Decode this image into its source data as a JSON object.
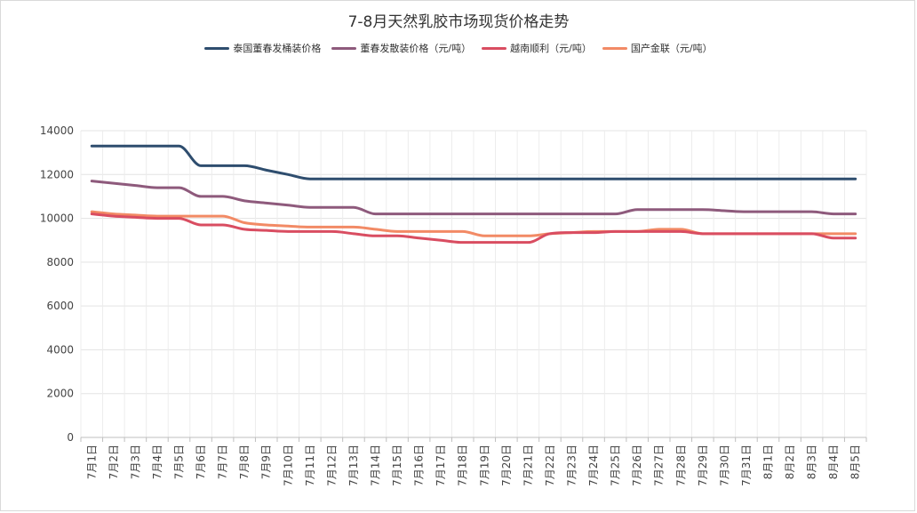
{
  "title": "7-8月天然乳胶市场现货价格走势",
  "chart_data": {
    "type": "line",
    "title": "7-8月天然乳胶市场现货价格走势",
    "xlabel": "",
    "ylabel": "",
    "ylim": [
      0,
      14000
    ],
    "yticks": [
      0,
      2000,
      4000,
      6000,
      8000,
      10000,
      12000,
      14000
    ],
    "grid": true,
    "legend_position": "top",
    "x": [
      "7月1日",
      "7月2日",
      "7月3日",
      "7月4日",
      "7月5日",
      "7月6日",
      "7月7日",
      "7月8日",
      "7月9日",
      "7月10日",
      "7月11日",
      "7月12日",
      "7月13日",
      "7月14日",
      "7月15日",
      "7月16日",
      "7月17日",
      "7月18日",
      "7月19日",
      "7月20日",
      "7月21日",
      "7月22日",
      "7月23日",
      "7月24日",
      "7月25日",
      "7月26日",
      "7月27日",
      "7月28日",
      "7月29日",
      "7月30日",
      "7月31日",
      "8月1日",
      "8月2日",
      "8月3日",
      "8月4日",
      "8月5日"
    ],
    "series": [
      {
        "name": "泰国董春发桶装价格",
        "color": "#2e4d6e",
        "values": [
          13300,
          13300,
          13300,
          13300,
          13300,
          12400,
          12400,
          12400,
          12200,
          12000,
          11800,
          11800,
          11800,
          11800,
          11800,
          11800,
          11800,
          11800,
          11800,
          11800,
          11800,
          11800,
          11800,
          11800,
          11800,
          11800,
          11800,
          11800,
          11800,
          11800,
          11800,
          11800,
          11800,
          11800,
          11800,
          11800
        ]
      },
      {
        "name": "董春发散装价格（元/吨）",
        "color": "#8e5a7c",
        "values": [
          11700,
          11600,
          11500,
          11400,
          11400,
          11000,
          11000,
          10800,
          10700,
          10600,
          10500,
          10500,
          10500,
          10200,
          10200,
          10200,
          10200,
          10200,
          10200,
          10200,
          10200,
          10200,
          10200,
          10200,
          10200,
          10400,
          10400,
          10400,
          10400,
          10350,
          10300,
          10300,
          10300,
          10300,
          10200,
          10200
        ]
      },
      {
        "name": "越南顺利（元/吨）",
        "color": "#d94d61",
        "values": [
          10200,
          10100,
          10050,
          10000,
          10000,
          9700,
          9700,
          9500,
          9450,
          9400,
          9400,
          9400,
          9300,
          9200,
          9200,
          9100,
          9000,
          8900,
          8900,
          8900,
          8900,
          9300,
          9350,
          9350,
          9400,
          9400,
          9400,
          9400,
          9300,
          9300,
          9300,
          9300,
          9300,
          9300,
          9100,
          9100
        ]
      },
      {
        "name": "国产金联（元/吨）",
        "color": "#f28a65",
        "values": [
          10300,
          10200,
          10150,
          10100,
          10100,
          10100,
          10100,
          9800,
          9700,
          9650,
          9600,
          9600,
          9600,
          9500,
          9400,
          9400,
          9400,
          9400,
          9200,
          9200,
          9200,
          9300,
          9350,
          9400,
          9400,
          9400,
          9500,
          9500,
          9300,
          9300,
          9300,
          9300,
          9300,
          9300,
          9300,
          9300
        ]
      }
    ]
  }
}
